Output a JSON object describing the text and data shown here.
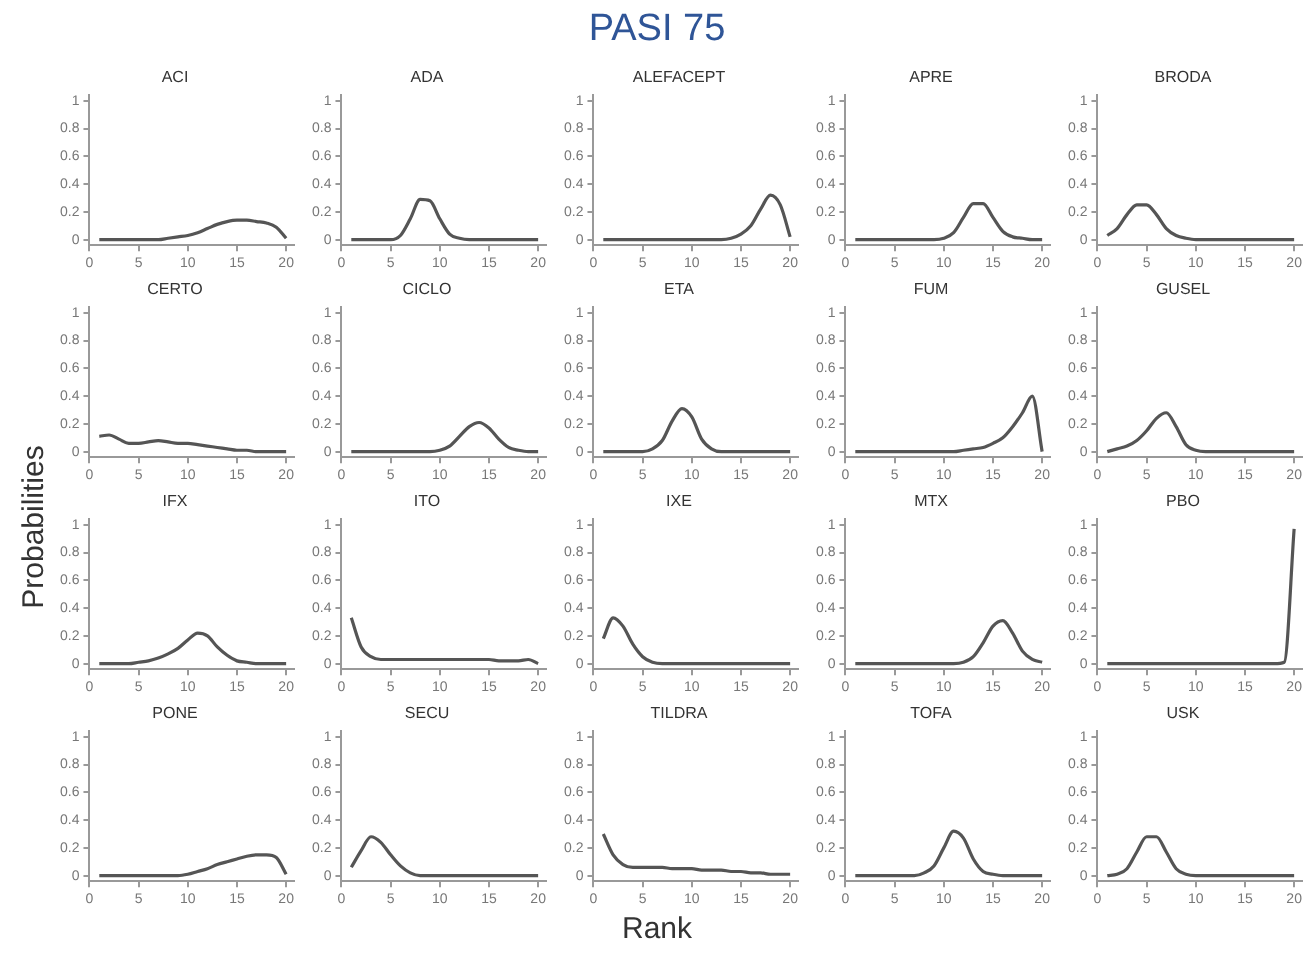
{
  "chart_data": [
    {
      "type": "other",
      "title": "PASI 75",
      "xlabel": "Rank",
      "ylabel": "Probabilities"
    },
    {
      "type": "line",
      "title": "ACI",
      "x": [
        1,
        2,
        3,
        4,
        5,
        6,
        7,
        8,
        9,
        10,
        11,
        12,
        13,
        14,
        15,
        16,
        17,
        18,
        19,
        20
      ],
      "values": [
        0,
        0,
        0,
        0,
        0,
        0,
        0,
        0.01,
        0.02,
        0.03,
        0.05,
        0.08,
        0.11,
        0.13,
        0.14,
        0.14,
        0.13,
        0.12,
        0.09,
        0.01
      ],
      "color": "#555555",
      "marker": "none",
      "xlim": [
        0,
        20.8
      ],
      "xticks": [
        0,
        5,
        10,
        15,
        20
      ],
      "ylim": [
        -0.04,
        1.04
      ],
      "yticks": [
        0,
        0.2,
        0.4,
        0.6,
        0.8,
        1
      ]
    },
    {
      "type": "line",
      "title": "ADA",
      "x": [
        1,
        2,
        3,
        4,
        5,
        6,
        7,
        8,
        9,
        10,
        11,
        12,
        13,
        14,
        15,
        16,
        17,
        18,
        19,
        20
      ],
      "values": [
        0,
        0,
        0,
        0,
        0,
        0.03,
        0.15,
        0.29,
        0.28,
        0.15,
        0.04,
        0.01,
        0,
        0,
        0,
        0,
        0,
        0,
        0,
        0
      ],
      "color": "#555555",
      "marker": "none",
      "xlim": [
        0,
        20.8
      ],
      "xticks": [
        0,
        5,
        10,
        15,
        20
      ],
      "ylim": [
        -0.04,
        1.04
      ],
      "yticks": [
        0,
        0.2,
        0.4,
        0.6,
        0.8,
        1
      ]
    },
    {
      "type": "line",
      "title": "ALEFACEPT",
      "x": [
        1,
        2,
        3,
        4,
        5,
        6,
        7,
        8,
        9,
        10,
        11,
        12,
        13,
        14,
        15,
        16,
        17,
        18,
        19,
        20
      ],
      "values": [
        0,
        0,
        0,
        0,
        0,
        0,
        0,
        0,
        0,
        0,
        0,
        0,
        0,
        0.01,
        0.04,
        0.1,
        0.22,
        0.32,
        0.25,
        0.02
      ],
      "color": "#555555",
      "marker": "none",
      "xlim": [
        0,
        20.8
      ],
      "xticks": [
        0,
        5,
        10,
        15,
        20
      ],
      "ylim": [
        -0.04,
        1.04
      ],
      "yticks": [
        0,
        0.2,
        0.4,
        0.6,
        0.8,
        1
      ]
    },
    {
      "type": "line",
      "title": "APRE",
      "x": [
        1,
        2,
        3,
        4,
        5,
        6,
        7,
        8,
        9,
        10,
        11,
        12,
        13,
        14,
        15,
        16,
        17,
        18,
        19,
        20
      ],
      "values": [
        0,
        0,
        0,
        0,
        0,
        0,
        0,
        0,
        0,
        0.01,
        0.05,
        0.16,
        0.26,
        0.26,
        0.16,
        0.06,
        0.02,
        0.01,
        0,
        0
      ],
      "color": "#555555",
      "marker": "none",
      "xlim": [
        0,
        20.8
      ],
      "xticks": [
        0,
        5,
        10,
        15,
        20
      ],
      "ylim": [
        -0.04,
        1.04
      ],
      "yticks": [
        0,
        0.2,
        0.4,
        0.6,
        0.8,
        1
      ]
    },
    {
      "type": "line",
      "title": "BRODA",
      "x": [
        1,
        2,
        3,
        4,
        5,
        6,
        7,
        8,
        9,
        10,
        11,
        12,
        13,
        14,
        15,
        16,
        17,
        18,
        19,
        20
      ],
      "values": [
        0.03,
        0.08,
        0.18,
        0.25,
        0.25,
        0.18,
        0.08,
        0.03,
        0.01,
        0,
        0,
        0,
        0,
        0,
        0,
        0,
        0,
        0,
        0,
        0
      ],
      "color": "#555555",
      "marker": "none",
      "xlim": [
        0,
        20.8
      ],
      "xticks": [
        0,
        5,
        10,
        15,
        20
      ],
      "ylim": [
        -0.04,
        1.04
      ],
      "yticks": [
        0,
        0.2,
        0.4,
        0.6,
        0.8,
        1
      ]
    },
    {
      "type": "line",
      "title": "CERTO",
      "x": [
        1,
        2,
        3,
        4,
        5,
        6,
        7,
        8,
        9,
        10,
        11,
        12,
        13,
        14,
        15,
        16,
        17,
        18,
        19,
        20
      ],
      "values": [
        0.11,
        0.12,
        0.09,
        0.06,
        0.06,
        0.07,
        0.08,
        0.07,
        0.06,
        0.06,
        0.05,
        0.04,
        0.03,
        0.02,
        0.01,
        0.01,
        0,
        0,
        0,
        0
      ],
      "color": "#555555",
      "marker": "none",
      "xlim": [
        0,
        20.8
      ],
      "xticks": [
        0,
        5,
        10,
        15,
        20
      ],
      "ylim": [
        -0.04,
        1.04
      ],
      "yticks": [
        0,
        0.2,
        0.4,
        0.6,
        0.8,
        1
      ]
    },
    {
      "type": "line",
      "title": "CICLO",
      "x": [
        1,
        2,
        3,
        4,
        5,
        6,
        7,
        8,
        9,
        10,
        11,
        12,
        13,
        14,
        15,
        16,
        17,
        18,
        19,
        20
      ],
      "values": [
        0,
        0,
        0,
        0,
        0,
        0,
        0,
        0,
        0,
        0.01,
        0.04,
        0.11,
        0.18,
        0.21,
        0.17,
        0.09,
        0.03,
        0.01,
        0,
        0
      ],
      "color": "#555555",
      "marker": "none",
      "xlim": [
        0,
        20.8
      ],
      "xticks": [
        0,
        5,
        10,
        15,
        20
      ],
      "ylim": [
        -0.04,
        1.04
      ],
      "yticks": [
        0,
        0.2,
        0.4,
        0.6,
        0.8,
        1
      ]
    },
    {
      "type": "line",
      "title": "ETA",
      "x": [
        1,
        2,
        3,
        4,
        5,
        6,
        7,
        8,
        9,
        10,
        11,
        12,
        13,
        14,
        15,
        16,
        17,
        18,
        19,
        20
      ],
      "values": [
        0,
        0,
        0,
        0,
        0,
        0.02,
        0.08,
        0.22,
        0.31,
        0.25,
        0.09,
        0.02,
        0,
        0,
        0,
        0,
        0,
        0,
        0,
        0
      ],
      "color": "#555555",
      "marker": "none",
      "xlim": [
        0,
        20.8
      ],
      "xticks": [
        0,
        5,
        10,
        15,
        20
      ],
      "ylim": [
        -0.04,
        1.04
      ],
      "yticks": [
        0,
        0.2,
        0.4,
        0.6,
        0.8,
        1
      ]
    },
    {
      "type": "line",
      "title": "FUM",
      "x": [
        1,
        2,
        3,
        4,
        5,
        6,
        7,
        8,
        9,
        10,
        11,
        12,
        13,
        14,
        15,
        16,
        17,
        18,
        19,
        20
      ],
      "values": [
        0,
        0,
        0,
        0,
        0,
        0,
        0,
        0,
        0,
        0,
        0,
        0.01,
        0.02,
        0.03,
        0.06,
        0.1,
        0.18,
        0.28,
        0.4,
        0
      ],
      "color": "#555555",
      "marker": "none",
      "xlim": [
        0,
        20.8
      ],
      "xticks": [
        0,
        5,
        10,
        15,
        20
      ],
      "ylim": [
        -0.04,
        1.04
      ],
      "yticks": [
        0,
        0.2,
        0.4,
        0.6,
        0.8,
        1
      ]
    },
    {
      "type": "line",
      "title": "GUSEL",
      "x": [
        1,
        2,
        3,
        4,
        5,
        6,
        7,
        8,
        9,
        10,
        11,
        12,
        13,
        14,
        15,
        16,
        17,
        18,
        19,
        20
      ],
      "values": [
        0,
        0.02,
        0.04,
        0.08,
        0.15,
        0.24,
        0.28,
        0.18,
        0.05,
        0.01,
        0,
        0,
        0,
        0,
        0,
        0,
        0,
        0,
        0,
        0
      ],
      "color": "#555555",
      "marker": "none",
      "xlim": [
        0,
        20.8
      ],
      "xticks": [
        0,
        5,
        10,
        15,
        20
      ],
      "ylim": [
        -0.04,
        1.04
      ],
      "yticks": [
        0,
        0.2,
        0.4,
        0.6,
        0.8,
        1
      ]
    },
    {
      "type": "line",
      "title": "IFX",
      "x": [
        1,
        2,
        3,
        4,
        5,
        6,
        7,
        8,
        9,
        10,
        11,
        12,
        13,
        14,
        15,
        16,
        17,
        18,
        19,
        20
      ],
      "values": [
        0,
        0,
        0,
        0,
        0.01,
        0.02,
        0.04,
        0.07,
        0.11,
        0.17,
        0.22,
        0.2,
        0.12,
        0.06,
        0.02,
        0.01,
        0,
        0,
        0,
        0
      ],
      "color": "#555555",
      "marker": "none",
      "xlim": [
        0,
        20.8
      ],
      "xticks": [
        0,
        5,
        10,
        15,
        20
      ],
      "ylim": [
        -0.04,
        1.04
      ],
      "yticks": [
        0,
        0.2,
        0.4,
        0.6,
        0.8,
        1
      ]
    },
    {
      "type": "line",
      "title": "ITO",
      "x": [
        1,
        2,
        3,
        4,
        5,
        6,
        7,
        8,
        9,
        10,
        11,
        12,
        13,
        14,
        15,
        16,
        17,
        18,
        19,
        20
      ],
      "values": [
        0.33,
        0.12,
        0.05,
        0.03,
        0.03,
        0.03,
        0.03,
        0.03,
        0.03,
        0.03,
        0.03,
        0.03,
        0.03,
        0.03,
        0.03,
        0.02,
        0.02,
        0.02,
        0.03,
        0
      ],
      "color": "#555555",
      "marker": "none",
      "xlim": [
        0,
        20.8
      ],
      "xticks": [
        0,
        5,
        10,
        15,
        20
      ],
      "ylim": [
        -0.04,
        1.04
      ],
      "yticks": [
        0,
        0.2,
        0.4,
        0.6,
        0.8,
        1
      ]
    },
    {
      "type": "line",
      "title": "IXE",
      "x": [
        1,
        2,
        3,
        4,
        5,
        6,
        7,
        8,
        9,
        10,
        11,
        12,
        13,
        14,
        15,
        16,
        17,
        18,
        19,
        20
      ],
      "values": [
        0.18,
        0.33,
        0.27,
        0.14,
        0.05,
        0.01,
        0,
        0,
        0,
        0,
        0,
        0,
        0,
        0,
        0,
        0,
        0,
        0,
        0,
        0
      ],
      "color": "#555555",
      "marker": "none",
      "xlim": [
        0,
        20.8
      ],
      "xticks": [
        0,
        5,
        10,
        15,
        20
      ],
      "ylim": [
        -0.04,
        1.04
      ],
      "yticks": [
        0,
        0.2,
        0.4,
        0.6,
        0.8,
        1
      ]
    },
    {
      "type": "line",
      "title": "MTX",
      "x": [
        1,
        2,
        3,
        4,
        5,
        6,
        7,
        8,
        9,
        10,
        11,
        12,
        13,
        14,
        15,
        16,
        17,
        18,
        19,
        20
      ],
      "values": [
        0,
        0,
        0,
        0,
        0,
        0,
        0,
        0,
        0,
        0,
        0,
        0.01,
        0.05,
        0.15,
        0.27,
        0.31,
        0.22,
        0.09,
        0.03,
        0.01
      ],
      "color": "#555555",
      "marker": "none",
      "xlim": [
        0,
        20.8
      ],
      "xticks": [
        0,
        5,
        10,
        15,
        20
      ],
      "ylim": [
        -0.04,
        1.04
      ],
      "yticks": [
        0,
        0.2,
        0.4,
        0.6,
        0.8,
        1
      ]
    },
    {
      "type": "line",
      "title": "PBO",
      "x": [
        1,
        2,
        3,
        4,
        5,
        6,
        7,
        8,
        9,
        10,
        11,
        12,
        13,
        14,
        15,
        16,
        17,
        18,
        19,
        20
      ],
      "values": [
        0,
        0,
        0,
        0,
        0,
        0,
        0,
        0,
        0,
        0,
        0,
        0,
        0,
        0,
        0,
        0,
        0,
        0,
        0.01,
        0.97
      ],
      "color": "#555555",
      "marker": "none",
      "xlim": [
        0,
        20.8
      ],
      "xticks": [
        0,
        5,
        10,
        15,
        20
      ],
      "ylim": [
        -0.04,
        1.04
      ],
      "yticks": [
        0,
        0.2,
        0.4,
        0.6,
        0.8,
        1
      ]
    },
    {
      "type": "line",
      "title": "PONE",
      "x": [
        1,
        2,
        3,
        4,
        5,
        6,
        7,
        8,
        9,
        10,
        11,
        12,
        13,
        14,
        15,
        16,
        17,
        18,
        19,
        20
      ],
      "values": [
        0,
        0,
        0,
        0,
        0,
        0,
        0,
        0,
        0,
        0.01,
        0.03,
        0.05,
        0.08,
        0.1,
        0.12,
        0.14,
        0.15,
        0.15,
        0.13,
        0.01
      ],
      "color": "#555555",
      "marker": "none",
      "xlim": [
        0,
        20.8
      ],
      "xticks": [
        0,
        5,
        10,
        15,
        20
      ],
      "ylim": [
        -0.04,
        1.04
      ],
      "yticks": [
        0,
        0.2,
        0.4,
        0.6,
        0.8,
        1
      ]
    },
    {
      "type": "line",
      "title": "SECU",
      "x": [
        1,
        2,
        3,
        4,
        5,
        6,
        7,
        8,
        9,
        10,
        11,
        12,
        13,
        14,
        15,
        16,
        17,
        18,
        19,
        20
      ],
      "values": [
        0.06,
        0.18,
        0.28,
        0.24,
        0.15,
        0.07,
        0.02,
        0,
        0,
        0,
        0,
        0,
        0,
        0,
        0,
        0,
        0,
        0,
        0,
        0
      ],
      "color": "#555555",
      "marker": "none",
      "xlim": [
        0,
        20.8
      ],
      "xticks": [
        0,
        5,
        10,
        15,
        20
      ],
      "ylim": [
        -0.04,
        1.04
      ],
      "yticks": [
        0,
        0.2,
        0.4,
        0.6,
        0.8,
        1
      ]
    },
    {
      "type": "line",
      "title": "TILDRA",
      "x": [
        1,
        2,
        3,
        4,
        5,
        6,
        7,
        8,
        9,
        10,
        11,
        12,
        13,
        14,
        15,
        16,
        17,
        18,
        19,
        20
      ],
      "values": [
        0.3,
        0.15,
        0.08,
        0.06,
        0.06,
        0.06,
        0.06,
        0.05,
        0.05,
        0.05,
        0.04,
        0.04,
        0.04,
        0.03,
        0.03,
        0.02,
        0.02,
        0.01,
        0.01,
        0.01
      ],
      "color": "#555555",
      "marker": "none",
      "xlim": [
        0,
        20.8
      ],
      "xticks": [
        0,
        5,
        10,
        15,
        20
      ],
      "ylim": [
        -0.04,
        1.04
      ],
      "yticks": [
        0,
        0.2,
        0.4,
        0.6,
        0.8,
        1
      ]
    },
    {
      "type": "line",
      "title": "TOFA",
      "x": [
        1,
        2,
        3,
        4,
        5,
        6,
        7,
        8,
        9,
        10,
        11,
        12,
        13,
        14,
        15,
        16,
        17,
        18,
        19,
        20
      ],
      "values": [
        0,
        0,
        0,
        0,
        0,
        0,
        0,
        0.02,
        0.07,
        0.2,
        0.32,
        0.27,
        0.12,
        0.03,
        0.01,
        0,
        0,
        0,
        0,
        0
      ],
      "color": "#555555",
      "marker": "none",
      "xlim": [
        0,
        20.8
      ],
      "xticks": [
        0,
        5,
        10,
        15,
        20
      ],
      "ylim": [
        -0.04,
        1.04
      ],
      "yticks": [
        0,
        0.2,
        0.4,
        0.6,
        0.8,
        1
      ]
    },
    {
      "type": "line",
      "title": "USK",
      "x": [
        1,
        2,
        3,
        4,
        5,
        6,
        7,
        8,
        9,
        10,
        11,
        12,
        13,
        14,
        15,
        16,
        17,
        18,
        19,
        20
      ],
      "values": [
        0,
        0.01,
        0.05,
        0.17,
        0.28,
        0.28,
        0.17,
        0.05,
        0.01,
        0,
        0,
        0,
        0,
        0,
        0,
        0,
        0,
        0,
        0,
        0
      ],
      "color": "#555555",
      "marker": "none",
      "xlim": [
        0,
        20.8
      ],
      "xticks": [
        0,
        5,
        10,
        15,
        20
      ],
      "ylim": [
        -0.04,
        1.04
      ],
      "yticks": [
        0,
        0.2,
        0.4,
        0.6,
        0.8,
        1
      ]
    }
  ]
}
